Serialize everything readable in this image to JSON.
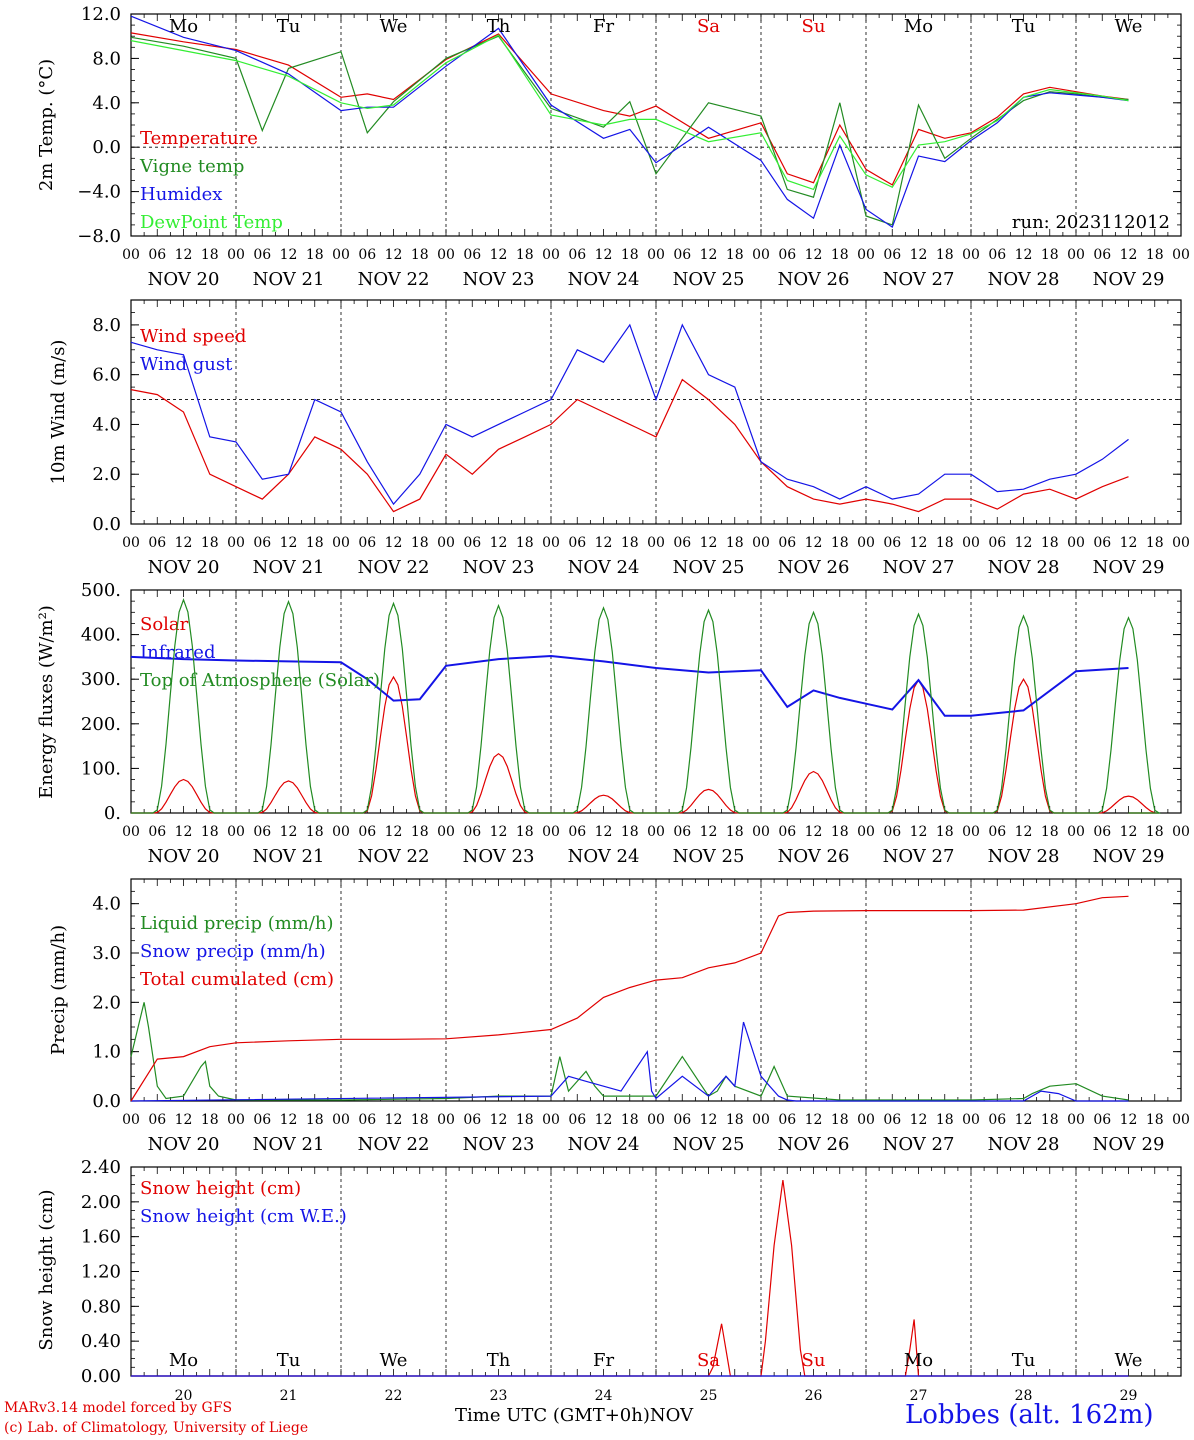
{
  "days": [
    "Mo",
    "Tu",
    "We",
    "Th",
    "Fr",
    "Sa",
    "Su",
    "Mo",
    "Tu",
    "We"
  ],
  "day_colors": [
    "#000000",
    "#000000",
    "#000000",
    "#000000",
    "#000000",
    "#e00000",
    "#e00000",
    "#000000",
    "#000000",
    "#000000"
  ],
  "date_labels": [
    "NOV 20",
    "NOV 21",
    "NOV 22",
    "NOV 23",
    "NOV 24",
    "NOV 25",
    "NOV 26",
    "NOV 27",
    "NOV 28",
    "NOV 29"
  ],
  "hour_ticks": [
    "00",
    "06",
    "12",
    "18"
  ],
  "bottom_day_numbers": [
    "20",
    "21",
    "22",
    "23",
    "24",
    "25",
    "26",
    "27",
    "28",
    "29"
  ],
  "bottom_month": "NOV",
  "footer": {
    "model": "MARv3.14 model forced by GFS",
    "credit": "(c) Lab. of Climatology, University of Liege",
    "time_axis": "Time UTC (GMT+0h)",
    "station": "Lobbes (alt. 162m)"
  },
  "chart_data": [
    {
      "type": "line",
      "ylabel": "2m Temp. (°C)",
      "ylim": [
        -8,
        12
      ],
      "yticks": [
        "12.0",
        "8.0",
        "4.0",
        "0.0",
        "−4.0",
        "−8.0"
      ],
      "ytick_values": [
        12,
        8,
        4,
        0,
        -4,
        -8
      ],
      "ref_line": 0,
      "annotation": "run: 2023112012",
      "x_unit": "hours since NOV 20 00 UTC",
      "series": [
        {
          "name": "Temperature",
          "color": "#e00000",
          "x": [
            0,
            12,
            24,
            36,
            48,
            54,
            60,
            72,
            84,
            96,
            108,
            114,
            120,
            132,
            144,
            150,
            156,
            162,
            168,
            174,
            180,
            186,
            192,
            198,
            204,
            210,
            216,
            222,
            228
          ],
          "values": [
            10.3,
            9.5,
            8.8,
            7.4,
            4.5,
            4.8,
            4.3,
            7.9,
            10.2,
            4.8,
            3.3,
            2.8,
            3.7,
            0.8,
            2.2,
            -2.4,
            -3.2,
            2.0,
            -2.0,
            -3.4,
            1.6,
            0.8,
            1.3,
            2.7,
            4.8,
            5.4,
            5.0,
            4.6,
            4.3
          ],
          "markers": false
        },
        {
          "name": "Vigne temp",
          "color": "#228b22",
          "x": [
            0,
            12,
            24,
            30,
            36,
            48,
            54,
            60,
            72,
            84,
            96,
            108,
            114,
            120,
            132,
            144,
            150,
            156,
            162,
            168,
            174,
            180,
            186,
            192,
            198,
            204,
            210,
            216,
            222,
            228
          ],
          "values": [
            9.9,
            9.1,
            8.0,
            1.5,
            7.1,
            8.6,
            1.3,
            4.1,
            8.0,
            10.0,
            3.5,
            1.8,
            4.1,
            -2.4,
            4.0,
            2.8,
            -3.8,
            -4.5,
            4.0,
            -6.2,
            -7.0,
            3.8,
            -1.0,
            0.8,
            2.5,
            4.2,
            5.0,
            4.8,
            4.5,
            4.3
          ],
          "markers": false
        },
        {
          "name": "Humidex",
          "color": "#1414e6",
          "x": [
            0,
            12,
            24,
            36,
            48,
            54,
            60,
            72,
            84,
            96,
            108,
            114,
            120,
            132,
            144,
            150,
            156,
            162,
            168,
            174,
            180,
            186,
            192,
            198,
            204,
            210,
            216,
            222,
            228
          ],
          "values": [
            11.8,
            9.9,
            8.7,
            6.6,
            3.3,
            3.6,
            3.6,
            7.3,
            10.7,
            3.8,
            0.8,
            1.6,
            -1.4,
            1.8,
            -1.2,
            -4.7,
            -6.4,
            0.2,
            -5.6,
            -7.2,
            -0.8,
            -1.3,
            0.6,
            2.2,
            4.5,
            4.9,
            4.7,
            4.5,
            4.2
          ],
          "markers": false
        },
        {
          "name": "DewPoint Temp",
          "color": "#33ee33",
          "x": [
            0,
            12,
            24,
            36,
            48,
            54,
            60,
            72,
            84,
            96,
            108,
            114,
            120,
            132,
            144,
            150,
            156,
            162,
            168,
            174,
            180,
            186,
            192,
            198,
            204,
            210,
            216,
            222,
            228
          ],
          "values": [
            9.6,
            8.7,
            7.8,
            6.4,
            4.0,
            3.5,
            3.8,
            7.6,
            10.1,
            2.9,
            2.0,
            2.5,
            2.5,
            0.5,
            1.3,
            -3.0,
            -3.8,
            1.0,
            -2.5,
            -3.6,
            0.2,
            0.5,
            1.2,
            2.4,
            4.5,
            5.2,
            4.9,
            4.6,
            4.2
          ],
          "markers": false
        }
      ]
    },
    {
      "type": "line",
      "ylabel": "10m Wind (m/s)",
      "ylim": [
        0,
        9
      ],
      "yticks": [
        "8.0",
        "6.0",
        "4.0",
        "2.0",
        "0.0"
      ],
      "ytick_values": [
        8,
        6,
        4,
        2,
        0
      ],
      "ref_line": 5,
      "x_unit": "hours since NOV 20 00 UTC",
      "series": [
        {
          "name": "Wind speed",
          "color": "#e00000",
          "x": [
            0,
            6,
            12,
            18,
            24,
            30,
            36,
            42,
            48,
            54,
            60,
            66,
            72,
            78,
            84,
            90,
            96,
            102,
            108,
            114,
            120,
            126,
            132,
            138,
            144,
            150,
            156,
            162,
            168,
            174,
            180,
            186,
            192,
            198,
            204,
            210,
            216,
            222,
            228
          ],
          "values": [
            5.4,
            5.2,
            4.5,
            2.0,
            1.5,
            1.0,
            2.0,
            3.5,
            3.0,
            2.0,
            0.5,
            1.0,
            2.8,
            2.0,
            3.0,
            3.5,
            4.0,
            5.0,
            4.5,
            4.0,
            3.5,
            5.8,
            5.0,
            4.0,
            2.5,
            1.5,
            1.0,
            0.8,
            1.0,
            0.8,
            0.5,
            1.0,
            1.0,
            0.6,
            1.2,
            1.4,
            1.0,
            1.5,
            1.9
          ],
          "markers": false
        },
        {
          "name": "Wind gust",
          "color": "#1414e6",
          "x": [
            0,
            6,
            12,
            18,
            24,
            30,
            36,
            42,
            48,
            54,
            60,
            66,
            72,
            78,
            84,
            90,
            96,
            102,
            108,
            114,
            120,
            126,
            132,
            138,
            144,
            150,
            156,
            162,
            168,
            174,
            180,
            186,
            192,
            198,
            204,
            210,
            216,
            222,
            228
          ],
          "values": [
            7.3,
            7.0,
            6.8,
            3.5,
            3.3,
            1.8,
            2.0,
            5.0,
            4.5,
            2.5,
            0.8,
            2.0,
            4.0,
            3.5,
            4.0,
            4.5,
            5.0,
            7.0,
            6.5,
            8.0,
            5.0,
            8.0,
            6.0,
            5.5,
            2.5,
            1.8,
            1.5,
            1.0,
            1.5,
            1.0,
            1.2,
            2.0,
            2.0,
            1.3,
            1.4,
            1.8,
            2.0,
            2.6,
            3.4
          ],
          "markers": false
        }
      ]
    },
    {
      "type": "line",
      "ylabel": "Energy fluxes (W/m²)",
      "ylim": [
        0,
        500
      ],
      "yticks": [
        "500.",
        "400.",
        "300.",
        "200.",
        "100.",
        "0."
      ],
      "ytick_values": [
        500,
        400,
        300,
        200,
        100,
        0
      ],
      "x_unit": "hours since NOV 20 00 UTC",
      "series": [
        {
          "name": "Solar",
          "color": "#e00000",
          "daily_peak_hour": 12,
          "daily_peaks": [
            75,
            72,
            305,
            133,
            40,
            53,
            93,
            298,
            300,
            38
          ],
          "markers": false
        },
        {
          "name": "Infrared",
          "color": "#1414e6",
          "x": [
            0,
            12,
            24,
            36,
            48,
            54,
            60,
            66,
            72,
            84,
            96,
            108,
            120,
            132,
            144,
            150,
            156,
            162,
            168,
            174,
            180,
            186,
            192,
            204,
            216,
            228
          ],
          "values": [
            350,
            345,
            342,
            340,
            338,
            300,
            252,
            255,
            330,
            345,
            352,
            340,
            325,
            315,
            320,
            238,
            275,
            258,
            245,
            232,
            298,
            218,
            218,
            230,
            318,
            325
          ],
          "markers": false
        },
        {
          "name": "Top of Atmosphere (Solar)",
          "color": "#228b22",
          "daily_peak_hour": 12,
          "daily_peaks": [
            478,
            474,
            470,
            465,
            460,
            455,
            450,
            446,
            442,
            438
          ],
          "markers": false
        }
      ]
    },
    {
      "type": "line",
      "ylabel": "Precip (mm/h)",
      "ylim": [
        0,
        4.5
      ],
      "yticks": [
        "4.0",
        "3.0",
        "2.0",
        "1.0",
        "0.0"
      ],
      "ytick_values": [
        4,
        3,
        2,
        1,
        0
      ],
      "x_unit": "hours since NOV 20 00 UTC",
      "series": [
        {
          "name": "Liquid precip (mm/h)",
          "color": "#228b22",
          "x": [
            0,
            3,
            4,
            6,
            8,
            12,
            16,
            17,
            18,
            20,
            24,
            48,
            72,
            84,
            96,
            98,
            100,
            104,
            106,
            108,
            120,
            126,
            132,
            134,
            136,
            138,
            144,
            147,
            150,
            162,
            168,
            192,
            204,
            206,
            210,
            216,
            222,
            228
          ],
          "values": [
            0.9,
            2.0,
            1.5,
            0.3,
            0.05,
            0.1,
            0.7,
            0.8,
            0.3,
            0.1,
            0.02,
            0.02,
            0.05,
            0.1,
            0.1,
            0.9,
            0.2,
            0.6,
            0.3,
            0.1,
            0.1,
            0.9,
            0.1,
            0.2,
            0.5,
            0.3,
            0.1,
            0.7,
            0.1,
            0.02,
            0.02,
            0.02,
            0.05,
            0.15,
            0.3,
            0.35,
            0.1,
            0.02
          ],
          "markers": false
        },
        {
          "name": "Snow precip (mm/h)",
          "color": "#1414e6",
          "x": [
            0,
            96,
            100,
            104,
            108,
            112,
            118,
            119,
            120,
            126,
            132,
            136,
            138,
            140,
            144,
            148,
            150,
            152,
            156,
            180,
            204,
            208,
            212,
            216,
            228
          ],
          "values": [
            0.0,
            0.1,
            0.5,
            0.4,
            0.3,
            0.2,
            1.0,
            0.2,
            0.05,
            0.5,
            0.1,
            0.5,
            0.3,
            1.6,
            0.5,
            0.1,
            0.02,
            0.0,
            0.0,
            0.0,
            0.0,
            0.2,
            0.15,
            0.0,
            0.0
          ],
          "markers": false
        },
        {
          "name": "Total cumulated (cm)",
          "color": "#e00000",
          "x": [
            0,
            6,
            12,
            18,
            24,
            36,
            48,
            60,
            72,
            84,
            96,
            102,
            108,
            114,
            120,
            126,
            132,
            138,
            144,
            148,
            150,
            156,
            168,
            180,
            192,
            204,
            216,
            222,
            228
          ],
          "values": [
            0.0,
            0.85,
            0.9,
            1.1,
            1.18,
            1.22,
            1.25,
            1.25,
            1.26,
            1.34,
            1.45,
            1.68,
            2.1,
            2.3,
            2.45,
            2.5,
            2.7,
            2.8,
            3.0,
            3.75,
            3.82,
            3.85,
            3.86,
            3.86,
            3.86,
            3.87,
            4.0,
            4.12,
            4.15
          ],
          "markers": false
        }
      ]
    },
    {
      "type": "line",
      "ylabel": "Snow height (cm)",
      "ylim": [
        0,
        2.4
      ],
      "yticks": [
        "2.40",
        "2.00",
        "1.60",
        "1.20",
        "0.80",
        "0.40",
        "0.00"
      ],
      "ytick_values": [
        2.4,
        2.0,
        1.6,
        1.2,
        0.8,
        0.4,
        0.0
      ],
      "x_unit": "hours since NOV 20 00 UTC",
      "series": [
        {
          "name": "Snow height (cm)",
          "color": "#e00000",
          "x": [
            0,
            132,
            133,
            135,
            137,
            141,
            144,
            145,
            147,
            149,
            151,
            153,
            154,
            177,
            178,
            179,
            180,
            228
          ],
          "values": [
            0,
            0,
            0.1,
            0.6,
            0,
            0,
            0,
            0.4,
            1.5,
            2.25,
            1.5,
            0.3,
            0,
            0,
            0.3,
            0.65,
            0,
            0
          ],
          "markers": false
        },
        {
          "name": "Snow height (cm W.E.)",
          "color": "#1414e6",
          "x": [
            0,
            228
          ],
          "values": [
            0,
            0
          ],
          "markers": false
        }
      ]
    }
  ]
}
